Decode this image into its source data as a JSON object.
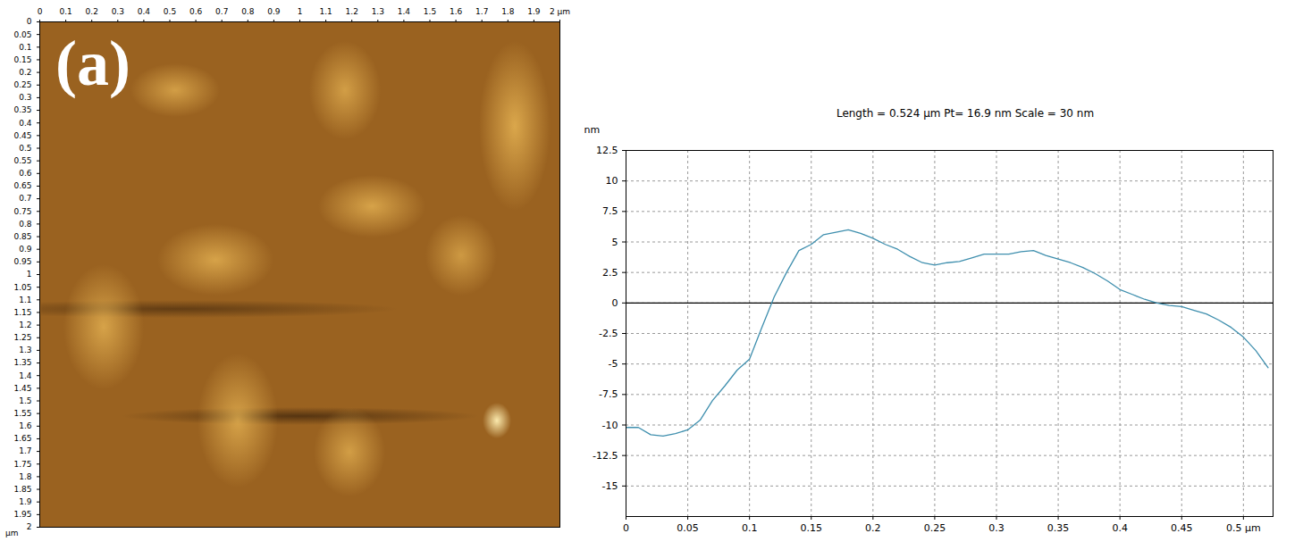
{
  "chart_data": [
    {
      "type": "image",
      "title": "(a)",
      "ylabel": "µm",
      "xlim": [
        0,
        2
      ],
      "xticks": [
        0,
        0.1,
        0.2,
        0.3,
        0.4,
        0.5,
        0.6,
        0.7,
        0.8,
        0.9,
        1,
        1.1,
        1.2,
        1.3,
        1.4,
        1.5,
        1.6,
        1.7,
        1.8,
        1.9,
        {
          "value": 2,
          "label": "2 µm"
        }
      ],
      "ylim": [
        0,
        2
      ],
      "yticks": [
        0,
        0.05,
        0.1,
        0.15,
        0.2,
        0.25,
        0.3,
        0.35,
        0.4,
        0.45,
        0.5,
        0.55,
        0.6,
        0.65,
        0.7,
        0.75,
        0.8,
        0.85,
        0.9,
        0.95,
        1,
        1.05,
        1.1,
        1.15,
        1.2,
        1.25,
        1.3,
        1.35,
        1.4,
        1.45,
        1.5,
        1.55,
        1.6,
        1.65,
        1.7,
        1.75,
        1.8,
        1.85,
        1.9,
        1.95,
        2
      ]
    },
    {
      "type": "line",
      "title": "Length = 0.524 µm  Pt= 16.9 nm  Scale = 30 nm",
      "ylabel": "nm",
      "x": [
        0,
        0.01,
        0.02,
        0.03,
        0.04,
        0.05,
        0.06,
        0.07,
        0.08,
        0.09,
        0.1,
        0.11,
        0.12,
        0.13,
        0.14,
        0.15,
        0.16,
        0.17,
        0.18,
        0.19,
        0.2,
        0.21,
        0.22,
        0.23,
        0.24,
        0.25,
        0.26,
        0.27,
        0.28,
        0.29,
        0.3,
        0.31,
        0.32,
        0.33,
        0.34,
        0.35,
        0.36,
        0.37,
        0.38,
        0.39,
        0.4,
        0.41,
        0.42,
        0.43,
        0.44,
        0.45,
        0.46,
        0.47,
        0.48,
        0.49,
        0.5,
        0.51,
        0.52
      ],
      "values": [
        -10.2,
        -10.2,
        -10.8,
        -10.9,
        -10.7,
        -10.4,
        -9.6,
        -8.0,
        -6.8,
        -5.5,
        -4.6,
        -2.0,
        0.5,
        2.5,
        4.3,
        4.8,
        5.6,
        5.8,
        6.0,
        5.7,
        5.3,
        4.8,
        4.4,
        3.8,
        3.3,
        3.1,
        3.3,
        3.4,
        3.7,
        4.0,
        4.0,
        4.0,
        4.2,
        4.3,
        3.9,
        3.6,
        3.3,
        2.9,
        2.4,
        1.8,
        1.1,
        0.7,
        0.3,
        0.0,
        -0.2,
        -0.3,
        -0.6,
        -0.9,
        -1.4,
        -2.0,
        -2.8,
        -3.9,
        -5.3
      ],
      "color": "#3f8fae",
      "reference_lines": [
        0
      ],
      "xlim": [
        0,
        0.524
      ],
      "xticks": [
        0,
        0.05,
        0.1,
        0.15,
        0.2,
        0.25,
        0.3,
        0.35,
        0.4,
        0.45,
        {
          "value": 0.5,
          "label": "0.5 µm"
        }
      ],
      "ylim": [
        -17.5,
        12.5
      ],
      "yticks": [
        12.5,
        10,
        7.5,
        5,
        2.5,
        0,
        -2.5,
        -5,
        -7.5,
        -10,
        -12.5,
        -15
      ],
      "grid": true
    }
  ]
}
